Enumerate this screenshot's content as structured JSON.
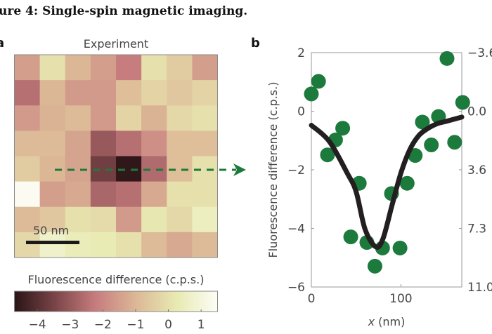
{
  "figure_title": "ure 4: Single-spin magnetic imaging.",
  "panel_a_label": "a",
  "panel_b_label": "b",
  "chart_data": [
    {
      "type": "heatmap",
      "title": "Experiment",
      "rows": 8,
      "cols": 8,
      "values": [
        [
          -1.5,
          0.0,
          -1.0,
          -1.5,
          -2.2,
          0.0,
          -0.5,
          -1.5
        ],
        [
          -2.5,
          -1.0,
          -1.6,
          -1.6,
          -0.8,
          -0.3,
          -0.6,
          -0.3
        ],
        [
          -1.6,
          -1.1,
          -0.9,
          -1.6,
          -0.3,
          -1.1,
          -0.2,
          0.0
        ],
        [
          -0.9,
          -0.9,
          -1.4,
          -3.0,
          -2.5,
          -1.8,
          -0.8,
          -0.8
        ],
        [
          -0.5,
          -1.0,
          -1.4,
          -3.6,
          -4.6,
          -2.6,
          -0.8,
          0.0
        ],
        [
          1.4,
          -1.5,
          -1.3,
          -2.7,
          -2.5,
          -1.3,
          0.0,
          0.0
        ],
        [
          -0.9,
          -0.6,
          0.0,
          -0.1,
          -1.6,
          0.2,
          -0.2,
          0.5
        ],
        [
          -0.2,
          0.7,
          0.4,
          0.3,
          0.0,
          -0.9,
          -1.3,
          -0.9
        ]
      ],
      "scale_bar_label": "50 nm",
      "colorbar": {
        "label": "Fluorescence difference (c.p.s.)",
        "range": [
          -4.7,
          1.5
        ],
        "ticks": [
          "−4",
          "−3",
          "−2",
          "−1",
          "0",
          "1"
        ],
        "tick_values": [
          -4,
          -3,
          -2,
          -1,
          0,
          1
        ],
        "colors": [
          "#2a1416",
          "#7a4548",
          "#c77c7e",
          "#dcb896",
          "#e8eab2",
          "#fdfdf6"
        ]
      },
      "linecut_color": "#1e7a3a"
    },
    {
      "type": "scatter",
      "xlabel_var": "x",
      "xlabel_unit": " (nm)",
      "ylabel": "Fluorescence difference (c.p.s.)",
      "xlim": [
        0,
        168
      ],
      "ylim": [
        -6,
        2
      ],
      "xticks": [
        "0",
        "100"
      ],
      "xtick_values": [
        0,
        100
      ],
      "yticks": [
        "2",
        "0",
        "−2",
        "−4",
        "−6"
      ],
      "ytick_values": [
        2,
        0,
        -2,
        -4,
        -6
      ],
      "right_yticks": [
        "−3.6",
        "0.0",
        "3.6",
        "7.3",
        "11.0"
      ],
      "point_color": "#1b7a3c",
      "line_color": "#231f20",
      "points": {
        "x": [
          0,
          8,
          18,
          27,
          35,
          53.5,
          44,
          62,
          71,
          79.5,
          89.5,
          99,
          107,
          116,
          124,
          134,
          142,
          151.5,
          160,
          169
        ],
        "y": [
          0.59,
          1.02,
          -1.49,
          -0.98,
          -0.58,
          -2.46,
          -4.29,
          -4.48,
          -5.29,
          -4.67,
          -2.81,
          -4.67,
          -2.46,
          -1.51,
          -0.37,
          -1.15,
          -0.18,
          1.8,
          -1.06,
          0.3
        ]
      },
      "fit": {
        "x": [
          0,
          20,
          40,
          50,
          60,
          72,
          80,
          90,
          100,
          110,
          120,
          130,
          140,
          150,
          168
        ],
        "y": [
          -0.48,
          -1.03,
          -2.11,
          -2.75,
          -4.03,
          -4.63,
          -4.35,
          -3.22,
          -2.11,
          -1.31,
          -0.83,
          -0.59,
          -0.43,
          -0.35,
          -0.2
        ]
      }
    }
  ]
}
